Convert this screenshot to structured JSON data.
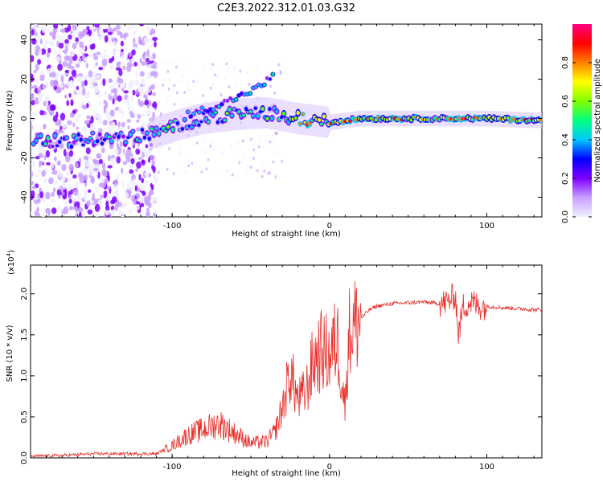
{
  "title": "C2E3.2022.312.01.03.G32",
  "chart_data": [
    {
      "type": "heatmap",
      "xlabel": "Height of straight line (km)",
      "ylabel": "Frequency (Hz)",
      "xlim": [
        -190,
        135
      ],
      "ylim": [
        -50,
        48
      ],
      "x_ticks": [
        "-100",
        "0",
        "100"
      ],
      "y_ticks": [
        "40",
        "20",
        "0",
        "-20",
        "-40"
      ],
      "colorbar": {
        "label": "Normalized spectral amplitude",
        "range": [
          0,
          1
        ],
        "ticks": [
          "0.0",
          "0.2",
          "0.4",
          "0.6",
          "0.8"
        ],
        "colors": [
          "#f0f0ff",
          "#c8a0ff",
          "#8000ff",
          "#0000ff",
          "#00c8ff",
          "#00ff80",
          "#80ff00",
          "#ffff00",
          "#ff8000",
          "#ff0000",
          "#ff0080"
        ]
      },
      "ridge": [
        {
          "x": -188,
          "y": -10
        },
        {
          "x": -170,
          "y": -12
        },
        {
          "x": -150,
          "y": -10
        },
        {
          "x": -130,
          "y": -10
        },
        {
          "x": -110,
          "y": -7
        },
        {
          "x": -95,
          "y": -3
        },
        {
          "x": -80,
          "y": 0
        },
        {
          "x": -60,
          "y": 2
        },
        {
          "x": -40,
          "y": 3
        },
        {
          "x": -20,
          "y": 0
        },
        {
          "x": 0,
          "y": -2
        },
        {
          "x": 20,
          "y": 0
        },
        {
          "x": 60,
          "y": 0
        },
        {
          "x": 100,
          "y": 0
        },
        {
          "x": 135,
          "y": -1
        }
      ],
      "branch": [
        {
          "x": -90,
          "y": 2
        },
        {
          "x": -70,
          "y": 7
        },
        {
          "x": -55,
          "y": 12
        },
        {
          "x": -45,
          "y": 16
        },
        {
          "x": -35,
          "y": 22
        }
      ]
    },
    {
      "type": "line",
      "xlabel": "Height of straight line (km)",
      "ylabel": "SNR (10 * v/v)",
      "scale_label": "(x10^4)",
      "scale_base": "(x10",
      "scale_exp": "4",
      "xlim": [
        -190,
        135
      ],
      "ylim": [
        0,
        2.35
      ],
      "x_ticks": [
        "-100",
        "0",
        "100"
      ],
      "y_ticks": [
        "2.0",
        "1.5",
        "1.0",
        "0.5",
        "0.0"
      ],
      "color": "#e8302a",
      "series": [
        {
          "x": [
            -190,
            -170,
            -150,
            -130,
            -110,
            -100,
            -90,
            -80,
            -70,
            -60,
            -50,
            -40,
            -35,
            -30,
            -25,
            -20,
            -15,
            -10,
            -5,
            0,
            5,
            10,
            12,
            15,
            20,
            25,
            30,
            40,
            50,
            60,
            70,
            75,
            78,
            80,
            82,
            85,
            90,
            95,
            100,
            110,
            120,
            135
          ],
          "y": [
            0.02,
            0.03,
            0.05,
            0.05,
            0.05,
            0.15,
            0.28,
            0.35,
            0.42,
            0.3,
            0.18,
            0.2,
            0.3,
            0.6,
            1.05,
            0.7,
            0.8,
            1.2,
            1.3,
            1.25,
            1.45,
            0.6,
            1.5,
            1.6,
            1.7,
            1.8,
            1.85,
            1.88,
            1.89,
            1.9,
            1.88,
            1.9,
            1.95,
            2.0,
            1.5,
            1.85,
            1.9,
            1.85,
            1.85,
            1.83,
            1.82,
            1.8
          ]
        }
      ]
    }
  ]
}
